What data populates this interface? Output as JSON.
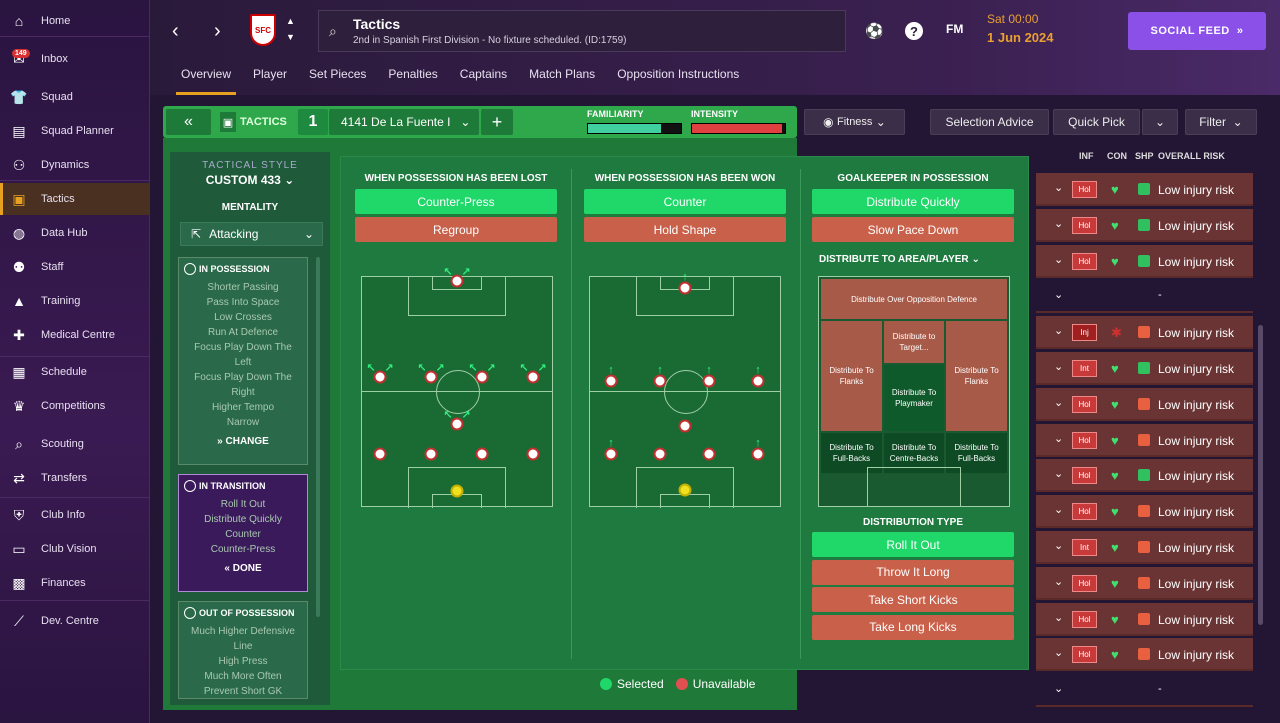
{
  "sidebar": {
    "items": [
      {
        "label": "Home",
        "icon": "home-icon"
      },
      {
        "label": "Inbox",
        "icon": "inbox-icon",
        "badge": "149"
      },
      {
        "label": "Squad",
        "icon": "shirt-icon"
      },
      {
        "label": "Squad Planner",
        "icon": "clipboard-icon"
      },
      {
        "label": "Dynamics",
        "icon": "dynamics-icon"
      },
      {
        "label": "Tactics",
        "icon": "tactics-icon",
        "active": true
      },
      {
        "label": "Data Hub",
        "icon": "data-hub-icon"
      },
      {
        "label": "Staff",
        "icon": "staff-icon"
      },
      {
        "label": "Training",
        "icon": "training-icon"
      },
      {
        "label": "Medical Centre",
        "icon": "medical-icon"
      },
      {
        "label": "Schedule",
        "icon": "calendar-icon"
      },
      {
        "label": "Competitions",
        "icon": "trophy-icon"
      },
      {
        "label": "Scouting",
        "icon": "scouting-icon"
      },
      {
        "label": "Transfers",
        "icon": "transfers-icon"
      },
      {
        "label": "Club Info",
        "icon": "shield-icon"
      },
      {
        "label": "Club Vision",
        "icon": "briefcase-icon"
      },
      {
        "label": "Finances",
        "icon": "finances-icon"
      },
      {
        "label": "Dev. Centre",
        "icon": "dev-centre-icon"
      }
    ]
  },
  "header": {
    "title": "Tactics",
    "subtitle": "2nd in Spanish First Division - No fixture scheduled. (ID:1759)",
    "fm_label": "FM",
    "date_time": "Sat 00:00",
    "date": "1 Jun 2024",
    "social_feed": "SOCIAL FEED",
    "tabs": [
      "Overview",
      "Player",
      "Set Pieces",
      "Penalties",
      "Captains",
      "Match Plans",
      "Opposition Instructions"
    ]
  },
  "tactics_bar": {
    "label": "TACTICS",
    "slot": "1",
    "name": "4141 De La Fuente I",
    "familiarity_label": "FAMILIARITY",
    "intensity_label": "INTENSITY",
    "familiarity": 0.78,
    "intensity": 0.97
  },
  "toolbar": {
    "fitness": "Fitness",
    "selection_advice": "Selection Advice",
    "quick_pick": "Quick Pick",
    "filter": "Filter"
  },
  "leftcol": {
    "style_label": "TACTICAL STYLE",
    "style": "CUSTOM 433",
    "mentality_label": "MENTALITY",
    "mentality": "Attacking",
    "in_possession": {
      "title": "IN POSSESSION",
      "items": [
        "Shorter Passing",
        "Pass Into Space",
        "Low Crosses",
        "Run At Defence",
        "Focus Play Down The",
        "Left",
        "Focus Play Down The",
        "Right",
        "Higher Tempo",
        "Narrow"
      ],
      "action": "CHANGE"
    },
    "in_transition": {
      "title": "IN TRANSITION",
      "items": [
        "Roll It Out",
        "Distribute Quickly",
        "Counter",
        "Counter-Press"
      ],
      "action": "DONE"
    },
    "out_of_possession": {
      "title": "OUT OF POSSESSION",
      "items": [
        "Much Higher Defensive",
        "Line",
        "High Press",
        "Much More Often",
        "Prevent Short GK"
      ]
    }
  },
  "transition": {
    "lost": {
      "title": "WHEN POSSESSION HAS BEEN LOST",
      "options": [
        {
          "label": "Counter-Press",
          "state": "selected"
        },
        {
          "label": "Regroup",
          "state": "unavailable"
        }
      ]
    },
    "won": {
      "title": "WHEN POSSESSION HAS BEEN WON",
      "options": [
        {
          "label": "Counter",
          "state": "selected"
        },
        {
          "label": "Hold Shape",
          "state": "unavailable"
        }
      ]
    },
    "gk": {
      "title": "GOALKEEPER IN POSSESSION",
      "options": [
        {
          "label": "Distribute Quickly",
          "state": "selected"
        },
        {
          "label": "Slow Pace Down",
          "state": "unavailable"
        }
      ]
    },
    "distribute_label": "DISTRIBUTE TO AREA/PLAYER",
    "zones": {
      "top": "Distribute Over Opposition Defence",
      "target": "Distribute to Target...",
      "flank_l": "Distribute To Flanks",
      "flank_r": "Distribute To Flanks",
      "playmaker": "Distribute To Playmaker",
      "fb_l": "Distribute To Full-Backs",
      "cb": "Distribute To Centre-Backs",
      "fb_r": "Distribute To Full-Backs"
    },
    "distribution_type_label": "DISTRIBUTION TYPE",
    "distribution_types": [
      {
        "label": "Roll It Out",
        "state": "selected"
      },
      {
        "label": "Throw It Long",
        "state": "unavailable"
      },
      {
        "label": "Take Short Kicks",
        "state": "unavailable"
      },
      {
        "label": "Take Long Kicks",
        "state": "unavailable"
      }
    ]
  },
  "legend": {
    "selected": "Selected",
    "unavailable": "Unavailable"
  },
  "squad_list": {
    "headers": {
      "inf": "INF",
      "con": "CON",
      "shp": "SHP",
      "risk": "OVERALL RISK"
    },
    "rows": [
      {
        "inf": "Hol",
        "risk": "Low injury risk"
      },
      {
        "inf": "Hol",
        "risk": "Low injury risk"
      },
      {
        "inf": "Hol",
        "risk": "Low injury risk"
      },
      {
        "empty": true,
        "dash": "-"
      },
      {
        "inf": "Inj",
        "risk": "Low injury risk"
      },
      {
        "inf": "Int",
        "risk": "Low injury risk"
      },
      {
        "inf": "Hol",
        "risk": "Low injury risk"
      },
      {
        "inf": "Hol",
        "risk": "Low injury risk"
      },
      {
        "inf": "Hol",
        "risk": "Low injury risk"
      },
      {
        "inf": "Hol",
        "risk": "Low injury risk"
      },
      {
        "inf": "Int",
        "risk": "Low injury risk"
      },
      {
        "inf": "Hol",
        "risk": "Low injury risk"
      },
      {
        "inf": "Hol",
        "risk": "Low injury risk"
      },
      {
        "inf": "Hol",
        "risk": "Low injury risk"
      },
      {
        "empty": true,
        "dash": "-"
      }
    ]
  },
  "colors": {
    "selected": "#20d86a",
    "unavailable": "#c8604a",
    "accent": "#e8a020"
  }
}
